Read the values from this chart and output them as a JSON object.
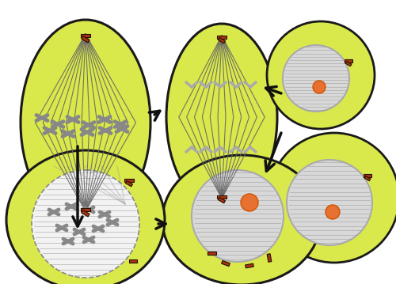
{
  "bg_color": "#ffffff",
  "cell_color": "#d9e84a",
  "cell_outline": "#1a1a1a",
  "spindle_color": "#888888",
  "chromosome_color": "#aaaaaa",
  "centriole_color": "#aa3311",
  "nucleus_fill": "#d8d8d8",
  "nucleus_outline": "#aaaaaa",
  "nucleolus_color": "#e87030",
  "arrow_color": "#111111",
  "figw": 5.0,
  "figh": 3.59,
  "dpi": 100
}
